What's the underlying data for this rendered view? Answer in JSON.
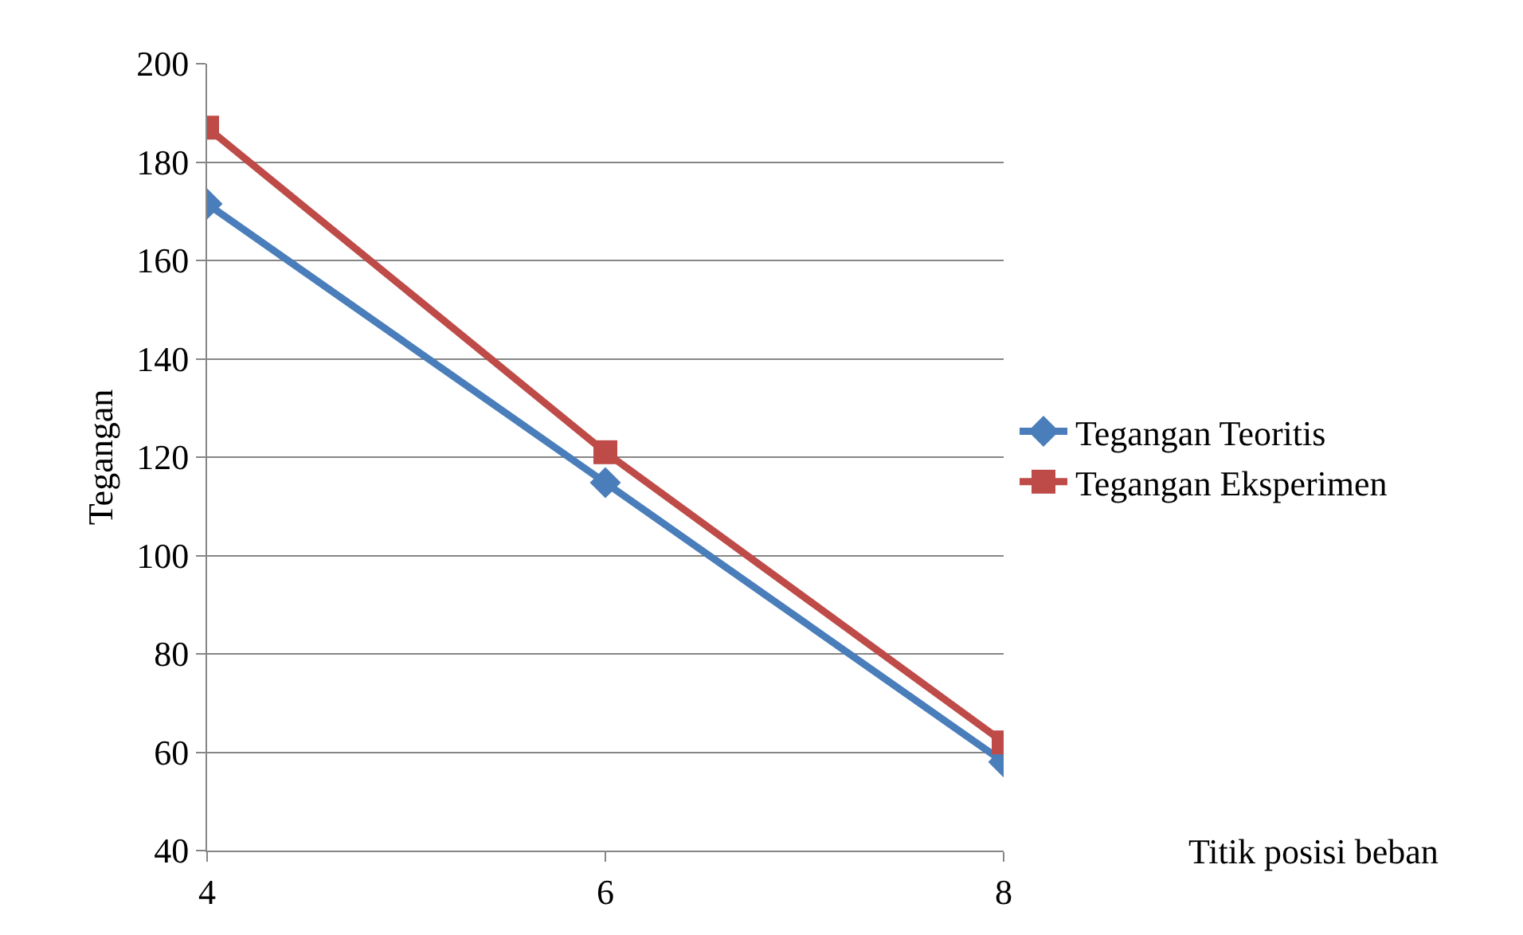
{
  "chart_data": {
    "type": "line",
    "annotations": [
      "Titik posisi beban"
    ],
    "ylabel": "Tegangan",
    "x": [
      4,
      6,
      8
    ],
    "series": [
      {
        "name": "Tegangan Teoritis",
        "color": "#4a7ebb",
        "values": [
          171.5,
          114.8,
          58
        ],
        "marker": "diamond"
      },
      {
        "name": "Tegangan Eksperimen",
        "color": "#be4b48",
        "values": [
          187,
          121,
          62
        ],
        "marker": "square"
      }
    ],
    "xlim": [
      4,
      8
    ],
    "xticks": [
      4,
      6,
      8
    ],
    "ylim": [
      40,
      200
    ],
    "yticks": [
      40,
      60,
      80,
      100,
      120,
      140,
      160,
      180,
      200
    ],
    "grid": "y",
    "legend": "right",
    "line_style": "solid"
  }
}
